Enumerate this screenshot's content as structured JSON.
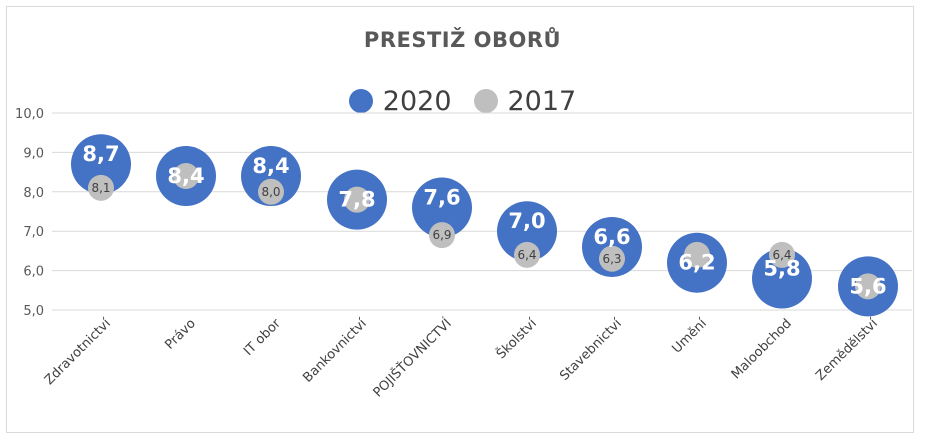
{
  "chart_data": {
    "type": "scatter",
    "title": "PRESTIŽ OBORŮ",
    "categories": [
      "Zdravotnictví",
      "Právo",
      "IT obor",
      "Bankovnictví",
      "POJIŠŤOVNICTVÍ",
      "Školství",
      "Stavebnictví",
      "Umění",
      "Maloobchod",
      "Zemědělství"
    ],
    "series": [
      {
        "name": "2020",
        "color": "#4472c4",
        "values": [
          8.7,
          8.4,
          8.4,
          7.8,
          7.6,
          7.0,
          6.6,
          6.2,
          5.8,
          5.6
        ],
        "labels": [
          "8,7",
          "8,4",
          "8,4",
          "7,8",
          "7,6",
          "7,0",
          "6,6",
          "6,2",
          "5,8",
          "5,6"
        ]
      },
      {
        "name": "2017",
        "color": "#bfbfbf",
        "values": [
          8.1,
          8.4,
          8.0,
          7.8,
          6.9,
          6.4,
          6.3,
          6.4,
          6.4,
          5.6
        ],
        "labels": [
          "8,1",
          "",
          "8,0",
          "",
          "6,9",
          "6,4",
          "6,3",
          "",
          "6,4",
          ""
        ]
      }
    ],
    "yticks": [
      "10,0",
      "9,0",
      "8,0",
      "7,0",
      "6,0",
      "5,0"
    ],
    "ylim": [
      5,
      10
    ],
    "grid": true,
    "legend": "top-center"
  }
}
